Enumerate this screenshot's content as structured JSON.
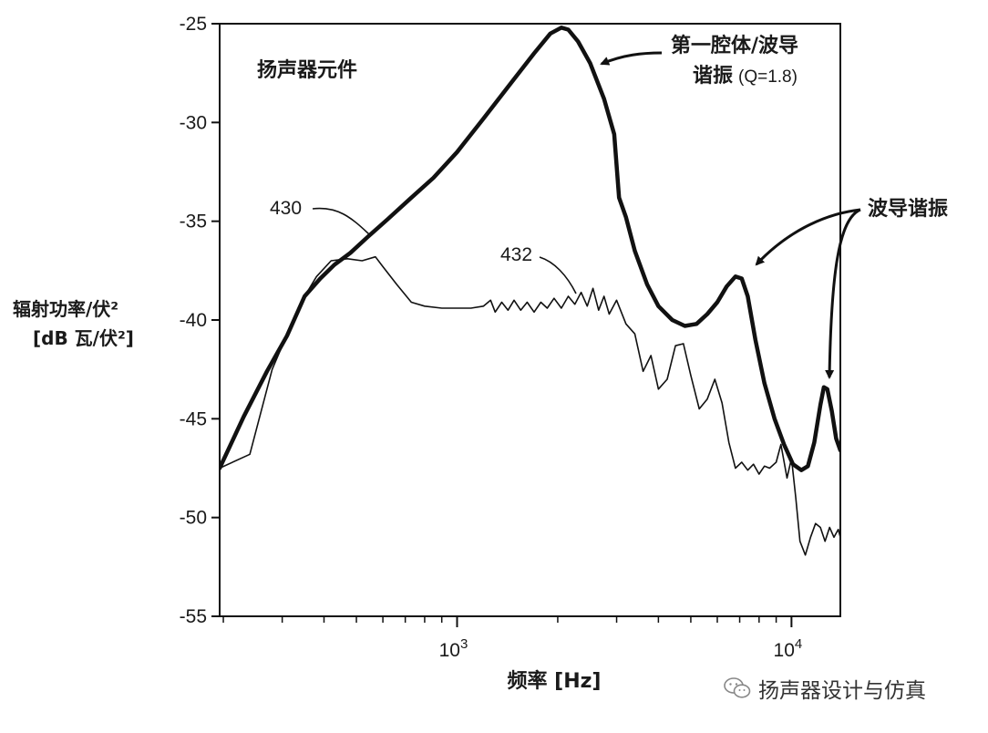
{
  "chart_data": {
    "type": "line",
    "inset_label": "扬声器元件",
    "ylabel_line1": "辐射功率/伏²",
    "ylabel_line2": "[dB 瓦/伏²]",
    "xlabel": "频率 [Hz]",
    "x_scale": "log",
    "xlim": [
      195,
      14000
    ],
    "ylim": [
      -55,
      -25
    ],
    "y_ticks": [
      -25,
      -30,
      -35,
      -40,
      -45,
      -50,
      -55
    ],
    "y_tick_labels": [
      "-25",
      "-30",
      "-35",
      "-40",
      "-45",
      "-50",
      "-55"
    ],
    "x_ticks": [
      1000,
      10000
    ],
    "x_tick_labels": [
      {
        "base": "10",
        "exp": "3"
      },
      {
        "base": "10",
        "exp": "4"
      }
    ],
    "grid": false,
    "series": [
      {
        "name": "430",
        "color": "#111111",
        "x": [
          195,
          230,
          270,
          310,
          350,
          390,
          430,
          480,
          540,
          620,
          720,
          850,
          1000,
          1200,
          1450,
          1700,
          1900,
          2050,
          2150,
          2300,
          2500,
          2750,
          2950,
          3050,
          3200,
          3400,
          3700,
          4000,
          4400,
          4800,
          5200,
          5600,
          6000,
          6400,
          6800,
          7100,
          7400,
          7800,
          8300,
          8900,
          9500,
          10100,
          10700,
          11200,
          11700,
          12200,
          12500,
          12800,
          13200,
          13600,
          14000
        ],
        "y": [
          -47.5,
          -44.9,
          -42.6,
          -40.8,
          -38.8,
          -37.9,
          -37.2,
          -36.6,
          -35.8,
          -34.9,
          -33.9,
          -32.8,
          -31.5,
          -29.8,
          -28.0,
          -26.5,
          -25.5,
          -25.2,
          -25.3,
          -25.9,
          -27.0,
          -28.8,
          -30.6,
          -33.8,
          -34.8,
          -36.5,
          -38.2,
          -39.3,
          -40.0,
          -40.3,
          -40.2,
          -39.7,
          -39.1,
          -38.3,
          -37.8,
          -37.9,
          -38.8,
          -41.0,
          -43.2,
          -45.0,
          -46.3,
          -47.3,
          -47.6,
          -47.4,
          -46.2,
          -44.3,
          -43.4,
          -43.5,
          -44.6,
          -46.0,
          -46.6
        ]
      },
      {
        "name": "432",
        "color": "#111111",
        "x": [
          195,
          240,
          280,
          320,
          350,
          380,
          420,
          470,
          520,
          570,
          600,
          660,
          730,
          800,
          900,
          1000,
          1100,
          1200,
          1260,
          1300,
          1360,
          1420,
          1480,
          1550,
          1620,
          1700,
          1780,
          1860,
          1950,
          2050,
          2150,
          2250,
          2350,
          2450,
          2550,
          2650,
          2750,
          2850,
          3000,
          3200,
          3400,
          3600,
          3800,
          4000,
          4250,
          4500,
          4750,
          5000,
          5300,
          5600,
          5900,
          6200,
          6500,
          6800,
          7100,
          7400,
          7700,
          8000,
          8300,
          8600,
          9000,
          9300,
          9700,
          10000,
          10300,
          10600,
          11000,
          11400,
          11800,
          12200,
          12600,
          13000,
          13400,
          13800,
          14000
        ],
        "y": [
          -47.5,
          -46.8,
          -42.5,
          -40.2,
          -38.8,
          -37.8,
          -37.0,
          -36.9,
          -37.0,
          -36.8,
          -37.3,
          -38.2,
          -39.1,
          -39.3,
          -39.4,
          -39.4,
          -39.4,
          -39.3,
          -39.0,
          -39.6,
          -39.1,
          -39.5,
          -39.0,
          -39.5,
          -39.1,
          -39.6,
          -39.1,
          -39.4,
          -38.9,
          -39.4,
          -38.8,
          -39.2,
          -38.6,
          -39.3,
          -38.4,
          -39.5,
          -38.8,
          -39.7,
          -39.0,
          -40.2,
          -40.7,
          -42.6,
          -41.8,
          -43.5,
          -43.0,
          -41.3,
          -41.2,
          -42.8,
          -44.5,
          -44.0,
          -43.0,
          -44.2,
          -46.2,
          -47.5,
          -47.2,
          -47.6,
          -47.3,
          -47.8,
          -47.4,
          -47.5,
          -47.2,
          -46.3,
          -48.0,
          -47.0,
          -49.0,
          -51.2,
          -51.9,
          -51.0,
          -50.3,
          -50.5,
          -51.2,
          -50.5,
          -51.0,
          -50.6,
          -51.0
        ]
      }
    ],
    "annotations": [
      {
        "text": "430",
        "target_series": "430"
      },
      {
        "text": "432",
        "target_series": "432"
      },
      {
        "line1": "第一腔体/波导",
        "line2_cjk": "谐振",
        "line2_latin": "(Q=1.8)"
      },
      {
        "text": "波导谐振"
      }
    ]
  },
  "watermark": {
    "icon": "wechat-icon",
    "text": "扬声器设计与仿真"
  }
}
